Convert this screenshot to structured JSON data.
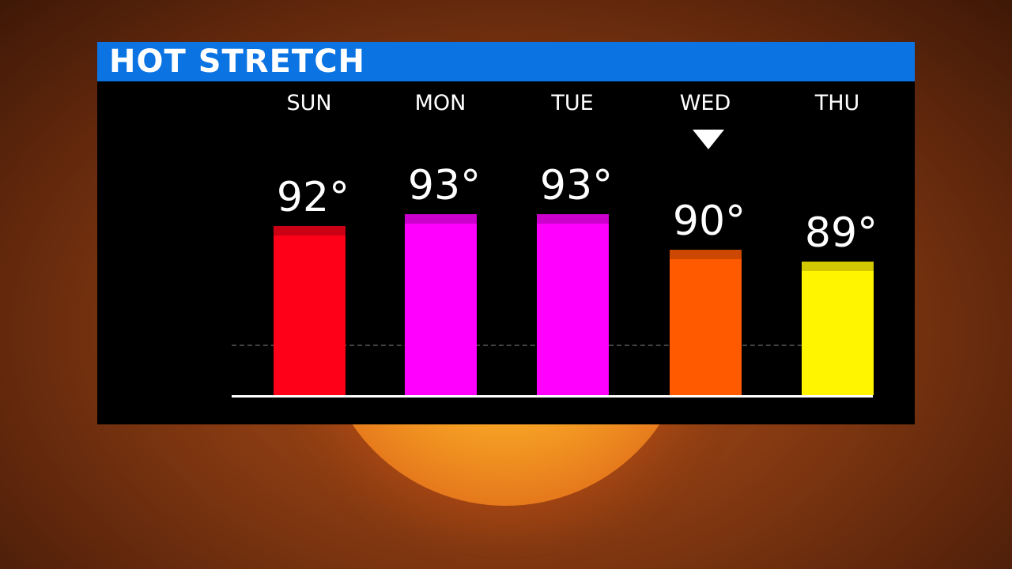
{
  "header": {
    "title": "HOT STRETCH"
  },
  "chart_data": {
    "type": "bar",
    "title": "HOT STRETCH",
    "categories": [
      "SUN",
      "MON",
      "TUE",
      "WED",
      "THU"
    ],
    "values": [
      92,
      93,
      93,
      90,
      89
    ],
    "labels": [
      "92°",
      "93°",
      "93°",
      "90°",
      "89°"
    ],
    "colors": [
      "#ff0019",
      "#ff00ff",
      "#ff00ff",
      "#ff5a00",
      "#fff500"
    ],
    "cap_colors": [
      "#cc0014",
      "#cc00cc",
      "#cc00cc",
      "#cc4800",
      "#d4c800"
    ],
    "highlighted_category": "WED",
    "reference_line": 82,
    "grid": false,
    "legend": "none"
  },
  "colors": {
    "title_bar": "#0b74e2",
    "panel": "#000000"
  }
}
